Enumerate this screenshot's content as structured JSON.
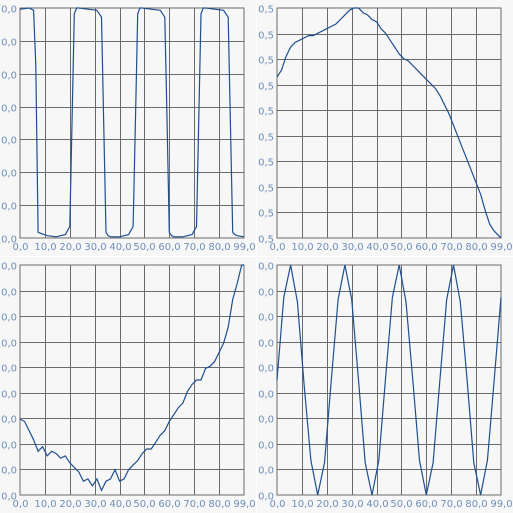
{
  "colors": {
    "series": "#1e4f91",
    "grid": "#6b6b6b",
    "tick_text": "#6e8fb8",
    "plot_bg": "#f7f7f7"
  },
  "chart_data": [
    {
      "type": "line",
      "name_key": "top-left",
      "xlim": [
        0,
        99
      ],
      "ylim": [
        -1,
        1
      ],
      "x_ticks": [
        "0,0",
        "10,0",
        "20,0",
        "30,0",
        "40,0",
        "50,0",
        "60,0",
        "70,0",
        "80,0",
        "99,0"
      ],
      "y_tick_labels": [
        "0,0",
        "0,0",
        "0,0",
        "0,0",
        "0,0",
        "0,0",
        "0,0",
        "0,0"
      ],
      "grid": true,
      "series": [
        {
          "x": [
            0,
            4,
            6,
            7,
            8,
            12,
            16,
            20,
            22,
            23,
            24,
            25,
            26,
            30,
            34,
            36,
            37,
            38,
            39,
            40,
            44,
            48,
            50,
            51,
            52,
            53,
            54,
            58,
            62,
            64,
            65,
            66,
            67,
            68,
            72,
            76,
            78,
            79,
            80,
            81,
            82,
            86,
            90,
            92,
            93,
            94,
            95,
            96,
            99
          ],
          "y": [
            0.99,
            1.0,
            0.98,
            0.5,
            -0.95,
            -0.98,
            -0.99,
            -0.97,
            -0.9,
            0.0,
            0.95,
            1.0,
            1.0,
            0.99,
            0.98,
            0.92,
            0.0,
            -0.95,
            -0.98,
            -0.99,
            -0.99,
            -0.97,
            -0.9,
            0.0,
            0.95,
            1.0,
            1.0,
            0.99,
            0.98,
            0.92,
            0.0,
            -0.95,
            -0.98,
            -0.99,
            -0.99,
            -0.97,
            -0.9,
            0.0,
            0.95,
            1.0,
            1.0,
            0.99,
            0.98,
            0.92,
            0.0,
            -0.95,
            -0.97,
            -0.98,
            -0.99
          ]
        }
      ]
    },
    {
      "type": "line",
      "name_key": "top-right",
      "xlim": [
        0,
        99
      ],
      "ylim": [
        0,
        1
      ],
      "x_ticks": [
        "0,0",
        "10,0",
        "20,0",
        "30,0",
        "40,0",
        "50,0",
        "60,0",
        "70,0",
        "80,0",
        "99,0"
      ],
      "y_tick_labels": [
        "0,5",
        "0,5",
        "0,5",
        "0,5",
        "0,5",
        "0,5",
        "0,5",
        "0,5",
        "0,5",
        "0,5"
      ],
      "grid": true,
      "series": [
        {
          "x": [
            0,
            2,
            4,
            6,
            8,
            10,
            12,
            14,
            16,
            18,
            20,
            22,
            24,
            26,
            28,
            30,
            32,
            34,
            36,
            38,
            40,
            42,
            44,
            46,
            48,
            50,
            52,
            54,
            56,
            58,
            60,
            62,
            64,
            66,
            68,
            70,
            72,
            74,
            76,
            78,
            80,
            82,
            84,
            86,
            88,
            90,
            92,
            94,
            96,
            98,
            99
          ],
          "y": [
            0.7,
            0.73,
            0.79,
            0.83,
            0.85,
            0.86,
            0.87,
            0.88,
            0.88,
            0.89,
            0.9,
            0.91,
            0.92,
            0.93,
            0.95,
            0.97,
            0.99,
            1.0,
            1.0,
            0.98,
            0.97,
            0.95,
            0.94,
            0.91,
            0.89,
            0.86,
            0.83,
            0.8,
            0.78,
            0.77,
            0.75,
            0.73,
            0.71,
            0.69,
            0.67,
            0.65,
            0.62,
            0.58,
            0.54,
            0.49,
            0.44,
            0.39,
            0.34,
            0.29,
            0.24,
            0.19,
            0.12,
            0.06,
            0.03,
            0.01,
            0.0
          ]
        }
      ]
    },
    {
      "type": "line",
      "name_key": "bottom-left",
      "xlim": [
        0,
        99
      ],
      "ylim": [
        0,
        1
      ],
      "x_ticks": [
        "0,0",
        "10,0",
        "20,0",
        "30,0",
        "40,0",
        "50,0",
        "60,0",
        "70,0",
        "80,0",
        "99,0"
      ],
      "y_tick_labels": [
        "0,0",
        "0,0",
        "0,0",
        "0,0",
        "0,0",
        "0,0",
        "0,0",
        "0,0",
        "0,0",
        "0,0"
      ],
      "grid": true,
      "series": [
        {
          "x": [
            0,
            2,
            4,
            6,
            8,
            10,
            12,
            14,
            16,
            18,
            20,
            22,
            24,
            26,
            28,
            30,
            32,
            34,
            36,
            38,
            40,
            42,
            44,
            46,
            48,
            50,
            52,
            54,
            56,
            58,
            60,
            62,
            64,
            66,
            68,
            70,
            72,
            74,
            76,
            78,
            80,
            82,
            84,
            86,
            88,
            90,
            92,
            94,
            96,
            98,
            99
          ],
          "y": [
            0.33,
            0.32,
            0.28,
            0.24,
            0.19,
            0.21,
            0.17,
            0.19,
            0.18,
            0.16,
            0.17,
            0.14,
            0.12,
            0.1,
            0.06,
            0.07,
            0.04,
            0.07,
            0.02,
            0.06,
            0.07,
            0.11,
            0.06,
            0.07,
            0.11,
            0.13,
            0.15,
            0.18,
            0.2,
            0.2,
            0.23,
            0.26,
            0.28,
            0.32,
            0.35,
            0.38,
            0.4,
            0.45,
            0.48,
            0.5,
            0.5,
            0.55,
            0.56,
            0.58,
            0.62,
            0.66,
            0.73,
            0.85,
            0.92,
            1.0,
            1.0
          ]
        }
      ]
    },
    {
      "type": "line",
      "name_key": "bottom-right",
      "xlim": [
        0,
        99
      ],
      "ylim": [
        -1,
        1
      ],
      "x_ticks": [
        "0,0",
        "10,0",
        "20,0",
        "30,0",
        "40,0",
        "50,0",
        "60,0",
        "70,0",
        "80,0",
        "99,0"
      ],
      "y_tick_labels": [
        "0,0",
        "0,0",
        "0,0",
        "0,0",
        "0,0",
        "0,0",
        "0,0",
        "0,0",
        "0,0",
        "0,0"
      ],
      "grid": true,
      "series": [
        {
          "x": [
            0,
            3,
            6,
            9,
            12,
            15,
            18,
            21,
            24,
            27,
            30,
            33,
            36,
            39,
            42,
            45,
            48,
            51,
            54,
            57,
            60,
            63,
            66,
            69,
            72,
            75,
            78,
            81,
            84,
            87,
            90,
            93,
            96,
            99
          ],
          "y": [
            0.0,
            0.72,
            1.0,
            0.68,
            -0.05,
            -0.7,
            -1.0,
            -0.72,
            0.0,
            0.7,
            1.0,
            0.7,
            0.0,
            -0.72,
            -1.0,
            -0.7,
            0.02,
            0.72,
            1.0,
            0.68,
            0.0,
            -0.7,
            -1.0,
            -0.72,
            0.0,
            0.7,
            1.0,
            0.68,
            0.0,
            -0.72,
            -1.0,
            -0.7,
            0.0,
            0.72
          ]
        }
      ]
    }
  ]
}
